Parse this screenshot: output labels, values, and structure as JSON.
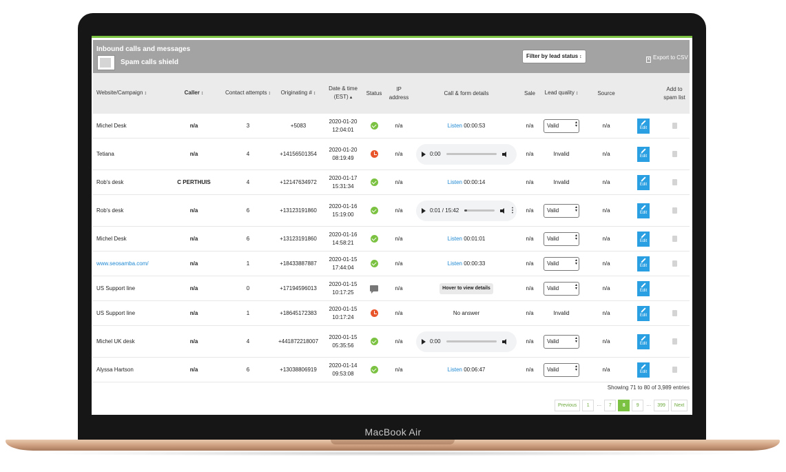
{
  "device_label": "MacBook Air",
  "header": {
    "title": "Inbound calls and messages",
    "spam_shield_label": "Spam calls shield",
    "filter_label": "Filter by lead status",
    "export_label": "Export to CSV"
  },
  "columns": {
    "website": "Website/Campaign",
    "caller": "Caller",
    "contact_attempts": "Contact attempts",
    "originating": "Originating #",
    "datetime": "Date & time (EST)",
    "status": "Status",
    "ip": "IP address",
    "details": "Call & form details",
    "sale": "Sale",
    "lead_quality": "Lead quality",
    "source": "Source",
    "add_spam": "Add to spam list"
  },
  "rows": [
    {
      "website": "Michel Desk",
      "caller": "n/a",
      "attempts": "3",
      "originating": "+5083",
      "date": "2020-01-20",
      "time": "12:04:01",
      "status": "answered",
      "ip": "n/a",
      "detail_type": "listen",
      "listen_label": "Listen",
      "duration": "00:00:53",
      "sale": "n/a",
      "lead_type": "select",
      "lead": "Valid",
      "source": "n/a",
      "edit": "Edit"
    },
    {
      "website": "Tetiana",
      "caller": "n/a",
      "attempts": "4",
      "originating": "+14156501354",
      "date": "2020-01-20",
      "time": "08:19:49",
      "status": "missed",
      "ip": "n/a",
      "detail_type": "player",
      "player_time": "0:00",
      "progress": 0,
      "more": false,
      "sale": "n/a",
      "lead_type": "text",
      "lead": "Invalid",
      "source": "n/a",
      "edit": "Edit"
    },
    {
      "website": "Rob's desk",
      "caller": "C PERTHUIS",
      "attempts": "4",
      "originating": "+12147634972",
      "date": "2020-01-17",
      "time": "15:31:34",
      "status": "answered",
      "ip": "n/a",
      "detail_type": "listen",
      "listen_label": "Listen",
      "duration": "00:00:14",
      "sale": "n/a",
      "lead_type": "text",
      "lead": "Invalid",
      "source": "n/a",
      "edit": "Edit"
    },
    {
      "website": "Rob's desk",
      "caller": "n/a",
      "attempts": "6",
      "originating": "+13123191860",
      "date": "2020-01-16",
      "time": "15:19:00",
      "status": "answered",
      "ip": "n/a",
      "detail_type": "player",
      "player_time": "0:01 / 15:42",
      "progress": 0.08,
      "more": true,
      "sale": "n/a",
      "lead_type": "select",
      "lead": "Valid",
      "source": "n/a",
      "edit": "Edit"
    },
    {
      "website": "Michel Desk",
      "caller": "n/a",
      "attempts": "6",
      "originating": "+13123191860",
      "date": "2020-01-16",
      "time": "14:58:21",
      "status": "answered",
      "ip": "n/a",
      "detail_type": "listen",
      "listen_label": "Listen",
      "duration": "00:01:01",
      "sale": "n/a",
      "lead_type": "select",
      "lead": "Valid",
      "source": "n/a",
      "edit": "Edit"
    },
    {
      "website": "www.seosamba.com/",
      "website_link": true,
      "caller": "n/a",
      "attempts": "1",
      "originating": "+18433887887",
      "date": "2020-01-15",
      "time": "17:44:04",
      "status": "answered",
      "ip": "n/a",
      "detail_type": "listen",
      "listen_label": "Listen",
      "duration": "00:00:33",
      "sale": "n/a",
      "lead_type": "select",
      "lead": "Valid",
      "source": "n/a",
      "edit": "Edit"
    },
    {
      "website": "US Support line",
      "caller": "n/a",
      "attempts": "0",
      "originating": "+17194596013",
      "date": "2020-01-15",
      "time": "10:17:25",
      "status": "message",
      "ip": "n/a",
      "detail_type": "hover",
      "hover_label": "Hover to view details",
      "sale": "n/a",
      "lead_type": "select",
      "lead": "Valid",
      "source": "n/a",
      "edit": "Edit",
      "no_spam": true
    },
    {
      "website": "US Support line",
      "caller": "n/a",
      "attempts": "1",
      "originating": "+18645172383",
      "date": "2020-01-15",
      "time": "10:17:24",
      "status": "missed",
      "ip": "n/a",
      "detail_type": "text",
      "detail_text": "No answer",
      "sale": "n/a",
      "lead_type": "text",
      "lead": "Invalid",
      "source": "n/a",
      "edit": "Edit"
    },
    {
      "website": "Michel UK desk",
      "caller": "n/a",
      "attempts": "4",
      "originating": "+441872218007",
      "date": "2020-01-15",
      "time": "05:35:56",
      "status": "answered",
      "ip": "n/a",
      "detail_type": "player",
      "player_time": "0:00",
      "progress": 0,
      "more": false,
      "sale": "n/a",
      "lead_type": "select",
      "lead": "Valid",
      "source": "n/a",
      "edit": "Edit"
    },
    {
      "website": "Alyssa Hartson",
      "caller": "n/a",
      "attempts": "6",
      "originating": "+13038806919",
      "date": "2020-01-14",
      "time": "09:53:08",
      "status": "answered",
      "ip": "n/a",
      "detail_type": "listen",
      "listen_label": "Listen",
      "duration": "00:06:47",
      "sale": "n/a",
      "lead_type": "select",
      "lead": "Valid",
      "source": "n/a",
      "edit": "Edit"
    }
  ],
  "footer": {
    "entries_text": "Showing 71 to 80 of 3,989 entries",
    "pagination": [
      {
        "label": "Previous",
        "type": "prev"
      },
      {
        "label": "1",
        "type": "page"
      },
      {
        "label": "…",
        "type": "ellipsis"
      },
      {
        "label": "7",
        "type": "page"
      },
      {
        "label": "8",
        "type": "active"
      },
      {
        "label": "9",
        "type": "page"
      },
      {
        "label": "…",
        "type": "ellipsis"
      },
      {
        "label": "399",
        "type": "page"
      },
      {
        "label": "Next",
        "type": "next"
      }
    ]
  },
  "colors": {
    "accent_green": "#7cc242",
    "edit_blue": "#2a9fe2",
    "link_blue": "#1e88d2",
    "missed_red": "#e9552a",
    "header_gray": "#a3a3a3"
  }
}
